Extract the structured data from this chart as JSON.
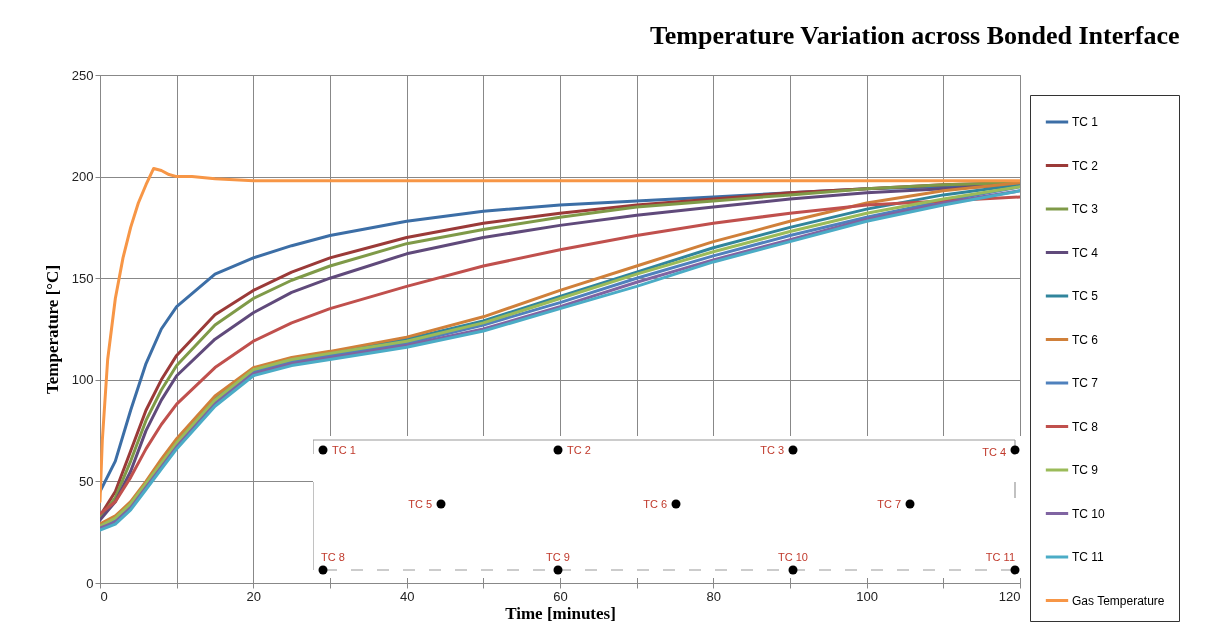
{
  "chart_data": {
    "type": "line",
    "title": "Temperature Variation across Bonded Interface",
    "xlabel": "Time [minutes]",
    "ylabel": "Temperature [°C]",
    "x": [
      0,
      2,
      4,
      6,
      8,
      10,
      15,
      20,
      25,
      30,
      40,
      50,
      60,
      70,
      80,
      90,
      100,
      110,
      120
    ],
    "series": [
      {
        "name": "TC 1",
        "color": "#3c6ea6",
        "values": [
          45,
          60,
          85,
          108,
          125,
          136,
          152,
          160,
          166,
          171,
          178,
          183,
          186,
          188,
          190,
          192,
          194,
          195,
          196
        ]
      },
      {
        "name": "TC 2",
        "color": "#9b3a38",
        "values": [
          33,
          45,
          65,
          85,
          100,
          112,
          132,
          144,
          153,
          160,
          170,
          177,
          182,
          186,
          189,
          192,
          194,
          196,
          197
        ]
      },
      {
        "name": "TC 3",
        "color": "#7f9a48",
        "values": [
          32,
          42,
          60,
          80,
          95,
          107,
          127,
          140,
          149,
          156,
          167,
          174,
          180,
          185,
          188,
          191,
          194,
          196,
          197
        ]
      },
      {
        "name": "TC 4",
        "color": "#604a7b",
        "values": [
          31,
          40,
          55,
          75,
          90,
          102,
          120,
          133,
          143,
          150,
          162,
          170,
          176,
          181,
          185,
          189,
          192,
          194,
          196
        ]
      },
      {
        "name": "TC 5",
        "color": "#31859c",
        "values": [
          28,
          32,
          39,
          49,
          60,
          70,
          91,
          105,
          110,
          113,
          120,
          129,
          141,
          153,
          165,
          175,
          184,
          191,
          196
        ]
      },
      {
        "name": "TC 6",
        "color": "#d0803a",
        "values": [
          29,
          33,
          40,
          50,
          61,
          71,
          92,
          106,
          111,
          114,
          121,
          131,
          144,
          156,
          168,
          178,
          187,
          193,
          197
        ]
      },
      {
        "name": "TC 7",
        "color": "#4f81bd",
        "values": [
          28,
          31,
          38,
          48,
          58,
          68,
          89,
          104,
          109,
          112,
          118,
          127,
          138,
          150,
          161,
          171,
          180,
          188,
          195
        ]
      },
      {
        "name": "TC 8",
        "color": "#c0504d",
        "values": [
          34,
          40,
          52,
          66,
          78,
          88,
          106,
          119,
          128,
          135,
          146,
          156,
          164,
          171,
          177,
          182,
          186,
          188,
          190
        ]
      },
      {
        "name": "TC 9",
        "color": "#9bbb59",
        "values": [
          28,
          32,
          39,
          49,
          59,
          69,
          90,
          105,
          110,
          113,
          119,
          128,
          140,
          152,
          163,
          173,
          182,
          189,
          195
        ]
      },
      {
        "name": "TC 10",
        "color": "#8064a2",
        "values": [
          27,
          30,
          37,
          47,
          57,
          67,
          88,
          103,
          108,
          111,
          117,
          125,
          136,
          148,
          159,
          169,
          179,
          187,
          193
        ]
      },
      {
        "name": "TC 11",
        "color": "#4bacc6",
        "values": [
          26,
          29,
          36,
          46,
          56,
          66,
          87,
          102,
          107,
          110,
          116,
          124,
          135,
          146,
          158,
          168,
          178,
          186,
          193
        ]
      },
      {
        "name": "Gas Temperature",
        "color": "#f79646",
        "x": [
          0,
          0.3,
          1,
          2,
          3,
          4,
          5,
          6,
          7,
          8,
          9,
          10,
          12,
          15,
          20,
          30,
          40,
          60,
          80,
          100,
          120
        ],
        "values": [
          40,
          70,
          110,
          140,
          160,
          175,
          187,
          196,
          204,
          203,
          201,
          200,
          200,
          199,
          198,
          198,
          198,
          198,
          198,
          198,
          198
        ]
      }
    ],
    "xlim": [
      0,
      120
    ],
    "xticks": [
      0,
      {
        "value": 10,
        "label": null
      },
      20,
      {
        "value": 30,
        "label": null
      },
      40,
      {
        "value": 50,
        "label": null
      },
      60,
      {
        "value": 70,
        "label": null
      },
      80,
      {
        "value": 90,
        "label": null
      },
      100,
      {
        "value": 110,
        "label": null
      },
      120
    ],
    "ylim": [
      0,
      250
    ],
    "yticks": [
      0,
      50,
      100,
      150,
      200,
      250
    ],
    "grid": true,
    "legend": "right",
    "line_style": "solid",
    "annotations": [
      "TC 1",
      "TC 2",
      "TC 3",
      "TC 4",
      "TC 5",
      "TC 6",
      "TC 7",
      "TC 8",
      "TC 9",
      "TC 10",
      "TC 11"
    ]
  }
}
